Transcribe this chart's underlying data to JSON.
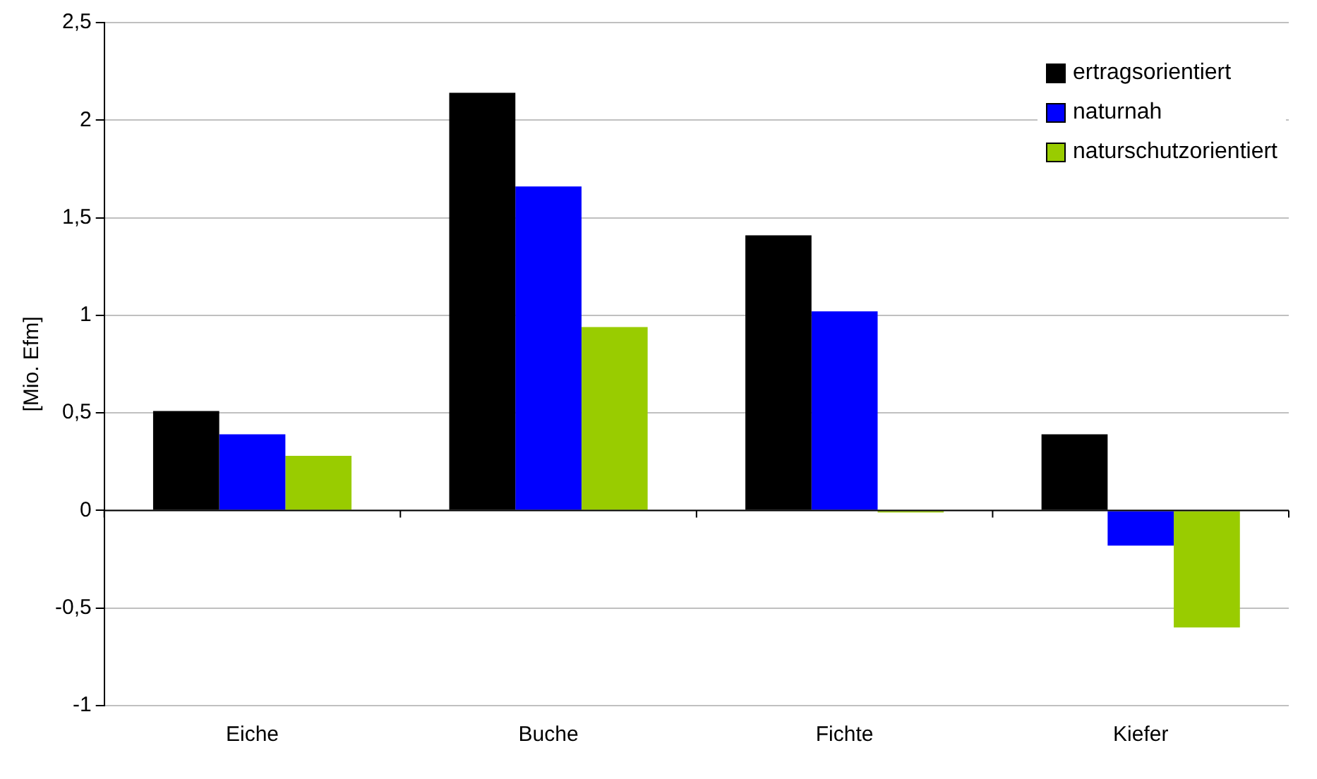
{
  "chart_data": {
    "type": "bar",
    "ylabel": "[Mio. Efm]",
    "categories": [
      "Eiche",
      "Buche",
      "Fichte",
      "Kiefer"
    ],
    "series": [
      {
        "name": "ertragsorientiert",
        "color": "#000000",
        "values": [
          0.51,
          2.14,
          1.41,
          0.39
        ]
      },
      {
        "name": "naturnah",
        "color": "#0000ff",
        "values": [
          0.39,
          1.66,
          1.02,
          -0.18
        ]
      },
      {
        "name": "naturschutzorientiert",
        "color": "#99cc00",
        "values": [
          0.28,
          0.94,
          -0.01,
          -0.6
        ]
      }
    ],
    "ylim": [
      -1,
      2.5
    ],
    "yticks": [
      {
        "value": -1,
        "label": "-1"
      },
      {
        "value": -0.5,
        "label": "-0,5"
      },
      0,
      {
        "value": 0.5,
        "label": "0,5"
      },
      1,
      {
        "value": 1.5,
        "label": "1,5"
      },
      2,
      {
        "value": 2.5,
        "label": "2,5"
      }
    ],
    "grid": "y",
    "legend": "top right"
  }
}
